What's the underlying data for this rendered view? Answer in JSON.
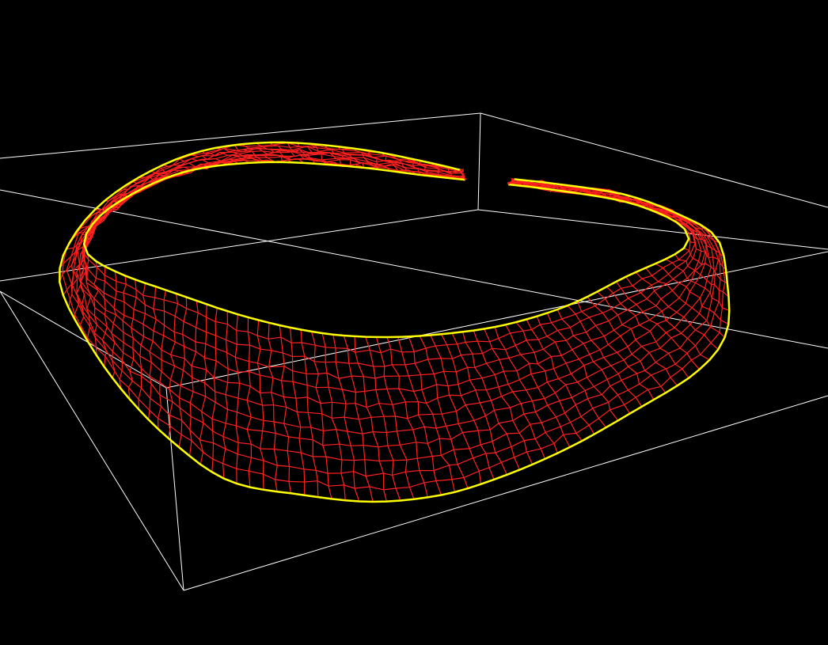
{
  "viewport": {
    "background": "#000000",
    "render_mode": "wireframe",
    "projection": "perspective"
  },
  "scene": {
    "bounding_box": {
      "visible": true,
      "color": "#ffffff"
    },
    "mesh": {
      "shape": "open curved band (ring-shaped quad mesh with a gap)",
      "wire_color": "#ff2020",
      "boundary_color": "#ffff00"
    }
  }
}
